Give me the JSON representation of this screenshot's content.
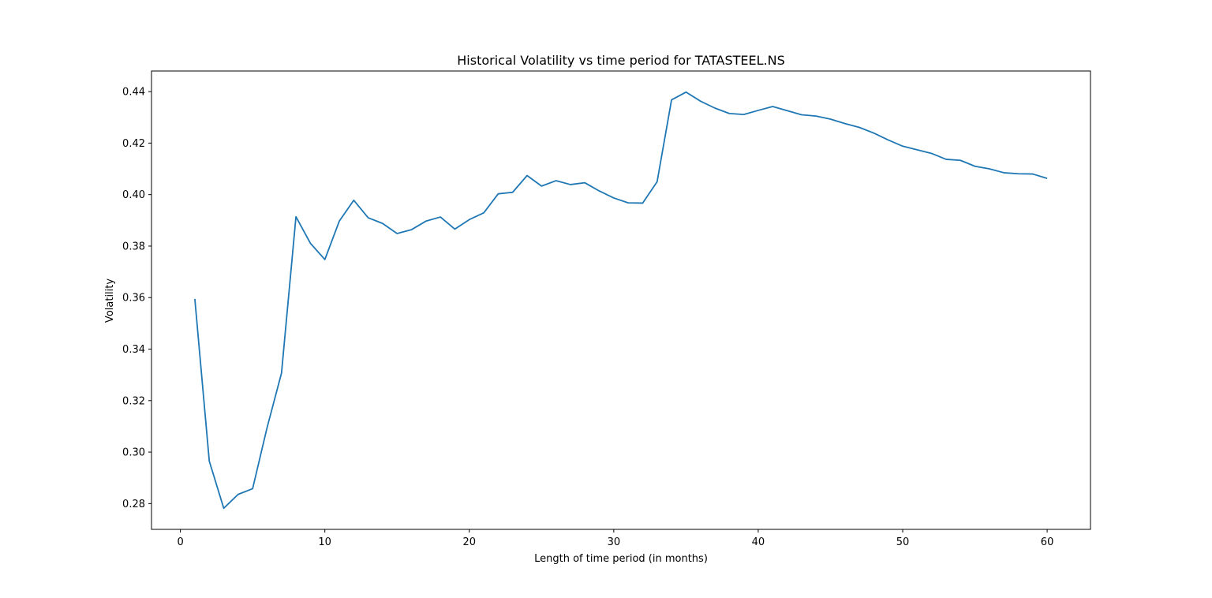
{
  "chart_data": {
    "type": "line",
    "title": "Historical Volatility vs time period for TATASTEEL.NS",
    "xlabel": "Length of time period (in months)",
    "ylabel": "Volatility",
    "xlim": [
      -2,
      63
    ],
    "ylim": [
      0.27,
      0.448
    ],
    "xticks": [
      0,
      10,
      20,
      30,
      40,
      50,
      60
    ],
    "yticks": [
      0.28,
      0.3,
      0.32,
      0.34,
      0.36,
      0.38,
      0.4,
      0.42,
      0.44
    ],
    "xtick_labels": [
      "0",
      "10",
      "20",
      "30",
      "40",
      "50",
      "60"
    ],
    "ytick_labels": [
      "0.28",
      "0.30",
      "0.32",
      "0.34",
      "0.36",
      "0.38",
      "0.40",
      "0.42",
      "0.44"
    ],
    "grid": false,
    "line_color": "#1f77b4",
    "x": [
      1,
      2,
      3,
      4,
      5,
      6,
      7,
      8,
      9,
      10,
      11,
      12,
      13,
      14,
      15,
      16,
      17,
      18,
      19,
      20,
      21,
      22,
      23,
      24,
      25,
      26,
      27,
      28,
      29,
      30,
      31,
      32,
      33,
      34,
      35,
      36,
      37,
      38,
      39,
      40,
      41,
      42,
      43,
      44,
      45,
      46,
      47,
      48,
      49,
      50,
      51,
      52,
      53,
      54,
      55,
      56,
      57,
      58,
      59,
      60
    ],
    "series": [
      {
        "values": [
          0.3595,
          0.2965,
          0.2782,
          0.2836,
          0.2858,
          0.3095,
          0.3307,
          0.3914,
          0.3811,
          0.3748,
          0.3897,
          0.3978,
          0.391,
          0.3888,
          0.3849,
          0.3864,
          0.3897,
          0.3913,
          0.3866,
          0.3903,
          0.3929,
          0.4003,
          0.4009,
          0.4074,
          0.4033,
          0.4054,
          0.4039,
          0.4046,
          0.4014,
          0.3987,
          0.3968,
          0.3967,
          0.405,
          0.4368,
          0.4398,
          0.4363,
          0.4336,
          0.4315,
          0.4311,
          0.4327,
          0.4342,
          0.4326,
          0.431,
          0.4305,
          0.4293,
          0.4276,
          0.4261,
          0.4239,
          0.4212,
          0.4188,
          0.4174,
          0.416,
          0.4137,
          0.4133,
          0.411,
          0.41,
          0.4085,
          0.4081,
          0.408,
          0.4063
        ]
      }
    ]
  }
}
